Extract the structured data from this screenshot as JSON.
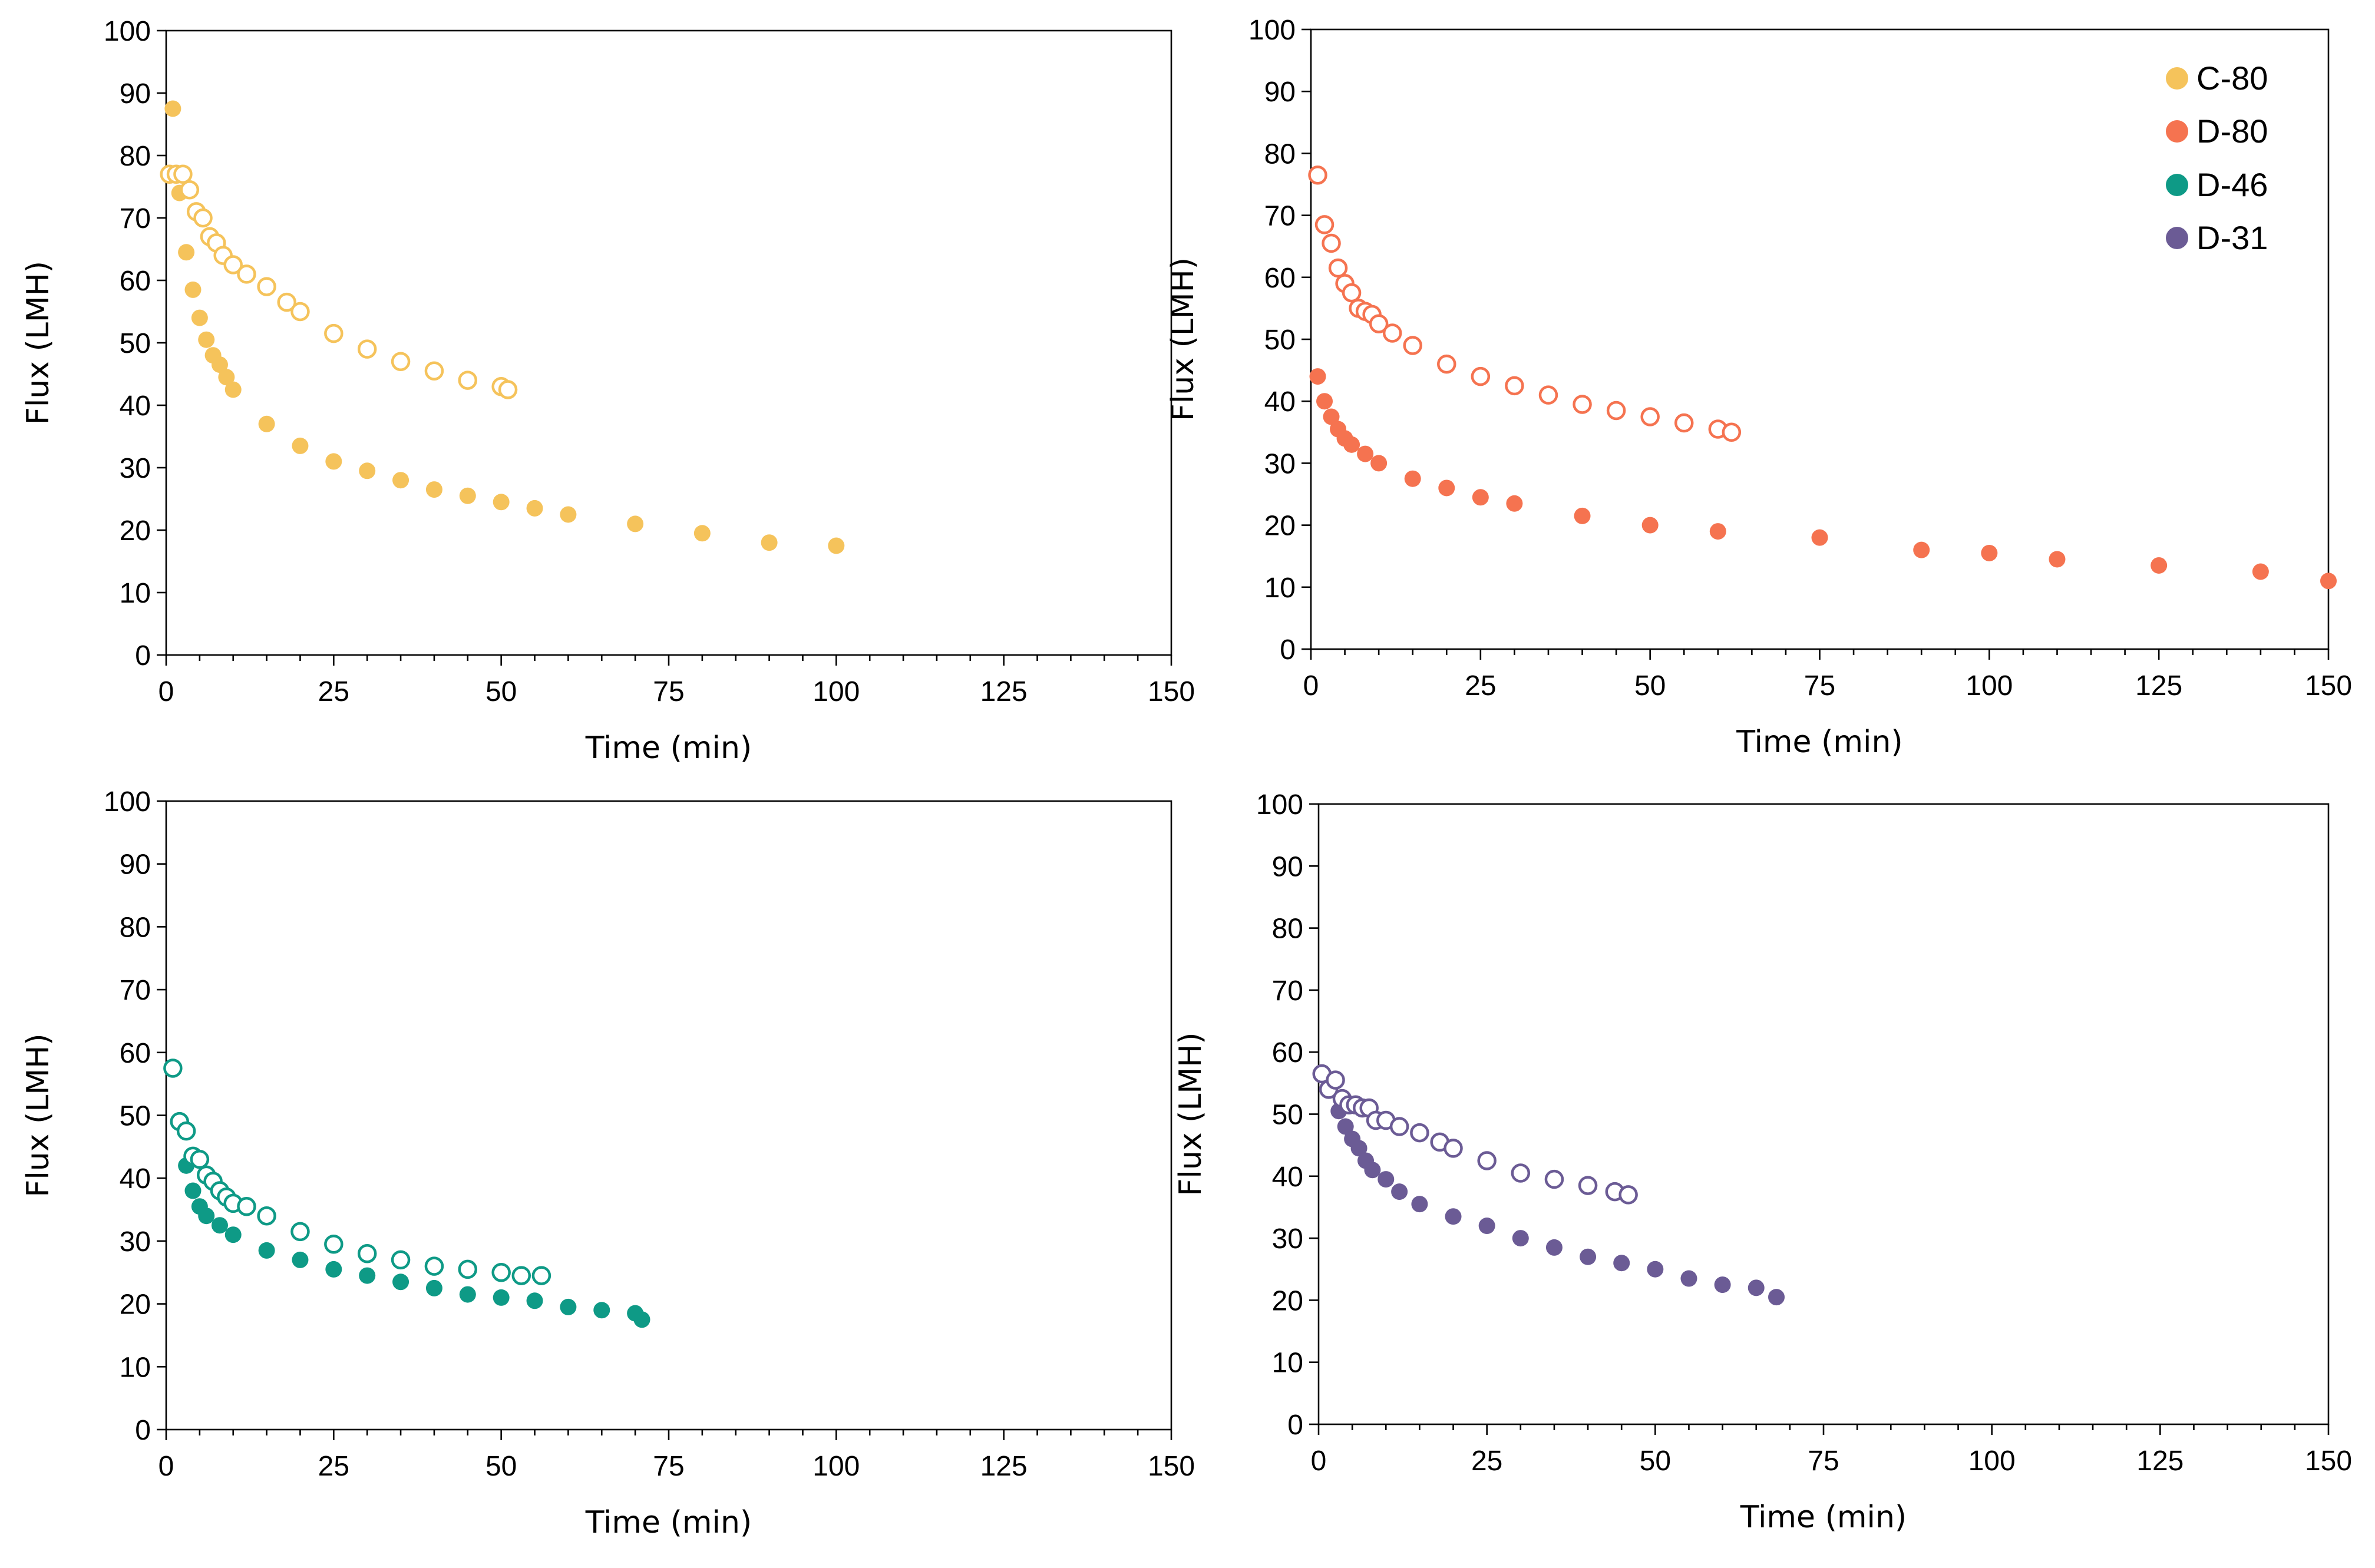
{
  "colors": {
    "C-80": "#f5c35b",
    "D-80": "#f57350",
    "D-46": "#0e9a86",
    "D-31": "#6b5b95"
  },
  "legend": {
    "entries": [
      "C-80",
      "D-80",
      "D-46",
      "D-31"
    ]
  },
  "chart_data": [
    {
      "id": "panel-c80",
      "type": "scatter",
      "title": "",
      "xlabel": "Time (min)",
      "ylabel": "Flux (LMH)",
      "xlim": [
        0,
        150
      ],
      "ylim": [
        0,
        100
      ],
      "xticks": [
        "0",
        "25",
        "50",
        "75",
        "100",
        "125",
        "150"
      ],
      "yticks": [
        "0",
        "10",
        "20",
        "30",
        "40",
        "50",
        "60",
        "70",
        "80",
        "90",
        "100"
      ],
      "series": [
        {
          "name": "C-80",
          "style": "filled",
          "x": [
            1,
            2,
            3,
            4,
            5,
            6,
            7,
            8,
            9,
            10,
            15,
            20,
            25,
            30,
            35,
            40,
            45,
            50,
            55,
            60,
            70,
            80,
            90,
            100
          ],
          "y": [
            87.5,
            74,
            64.5,
            58.5,
            54,
            50.5,
            48,
            46.5,
            44.5,
            42.5,
            37,
            33.5,
            31,
            29.5,
            28,
            26.5,
            25.5,
            24.5,
            23.5,
            22.5,
            21,
            19.5,
            18,
            17.5
          ]
        },
        {
          "name": "C-80",
          "style": "open",
          "x": [
            0.5,
            1.5,
            2.5,
            3.5,
            4.5,
            5.5,
            6.5,
            7.5,
            8.5,
            10,
            12,
            15,
            18,
            20,
            25,
            30,
            35,
            40,
            45,
            50,
            51
          ],
          "y": [
            77,
            77,
            77,
            74.5,
            71,
            70,
            67,
            66,
            64,
            62.5,
            61,
            59,
            56.5,
            55,
            51.5,
            49,
            47,
            45.5,
            44,
            43,
            42.5
          ]
        }
      ]
    },
    {
      "id": "panel-d80",
      "type": "scatter",
      "title": "",
      "xlabel": "Time (min)",
      "ylabel": "Flux (LMH)",
      "xlim": [
        0,
        150
      ],
      "ylim": [
        0,
        100
      ],
      "xticks": [
        "0",
        "25",
        "50",
        "75",
        "100",
        "125",
        "150"
      ],
      "yticks": [
        "0",
        "10",
        "20",
        "30",
        "40",
        "50",
        "60",
        "70",
        "80",
        "90",
        "100"
      ],
      "series": [
        {
          "name": "D-80",
          "style": "filled",
          "x": [
            1,
            2,
            3,
            4,
            5,
            6,
            8,
            10,
            15,
            20,
            25,
            30,
            40,
            50,
            60,
            75,
            90,
            100,
            110,
            125,
            140,
            150
          ],
          "y": [
            44,
            40,
            37.5,
            35.5,
            34,
            33,
            31.5,
            30,
            27.5,
            26,
            24.5,
            23.5,
            21.5,
            20,
            19,
            18,
            16,
            15.5,
            14.5,
            13.5,
            12.5,
            11
          ]
        },
        {
          "name": "D-80",
          "style": "open",
          "x": [
            1,
            2,
            3,
            4,
            5,
            6,
            7,
            8,
            9,
            10,
            12,
            15,
            20,
            25,
            30,
            35,
            40,
            45,
            50,
            55,
            60,
            62
          ],
          "y": [
            76.5,
            68.5,
            65.5,
            61.5,
            59,
            57.5,
            55,
            54.5,
            54,
            52.5,
            51,
            49,
            46,
            44,
            42.5,
            41,
            39.5,
            38.5,
            37.5,
            36.5,
            35.5,
            35
          ]
        }
      ]
    },
    {
      "id": "panel-d46",
      "type": "scatter",
      "title": "",
      "xlabel": "Time (min)",
      "ylabel": "Flux (LMH)",
      "xlim": [
        0,
        150
      ],
      "ylim": [
        0,
        100
      ],
      "xticks": [
        "0",
        "25",
        "50",
        "75",
        "100",
        "125",
        "150"
      ],
      "yticks": [
        "0",
        "10",
        "20",
        "30",
        "40",
        "50",
        "60",
        "70",
        "80",
        "90",
        "100"
      ],
      "series": [
        {
          "name": "D-46",
          "style": "filled",
          "x": [
            3,
            4,
            5,
            6,
            8,
            10,
            15,
            20,
            25,
            30,
            35,
            40,
            45,
            50,
            55,
            60,
            65,
            70,
            71
          ],
          "y": [
            42,
            38,
            35.5,
            34,
            32.5,
            31,
            28.5,
            27,
            25.5,
            24.5,
            23.5,
            22.5,
            21.5,
            21,
            20.5,
            19.5,
            19,
            18.5,
            17.5
          ]
        },
        {
          "name": "D-46",
          "style": "open",
          "x": [
            1,
            2,
            3,
            4,
            5,
            6,
            7,
            8,
            9,
            10,
            12,
            15,
            20,
            25,
            30,
            35,
            40,
            45,
            50,
            53,
            56
          ],
          "y": [
            57.5,
            49,
            47.5,
            43.5,
            43,
            40.5,
            39.5,
            38,
            37,
            36,
            35.5,
            34,
            31.5,
            29.5,
            28,
            27,
            26,
            25.5,
            25,
            24.5,
            24.5
          ]
        }
      ]
    },
    {
      "id": "panel-d31",
      "type": "scatter",
      "title": "",
      "xlabel": "Time (min)",
      "ylabel": "Flux (LMH)",
      "xlim": [
        0,
        150
      ],
      "ylim": [
        0,
        100
      ],
      "xticks": [
        "0",
        "25",
        "50",
        "75",
        "100",
        "125",
        "150"
      ],
      "yticks": [
        "0",
        "10",
        "20",
        "30",
        "40",
        "50",
        "60",
        "70",
        "80",
        "90",
        "100"
      ],
      "series": [
        {
          "name": "D-31",
          "style": "filled",
          "x": [
            3,
            4,
            5,
            6,
            7,
            8,
            10,
            12,
            15,
            20,
            25,
            30,
            35,
            40,
            45,
            50,
            55,
            60,
            65,
            68
          ],
          "y": [
            50.5,
            48,
            46,
            44.5,
            42.5,
            41,
            39.5,
            37.5,
            35.5,
            33.5,
            32,
            30,
            28.5,
            27,
            26,
            25,
            23.5,
            22.5,
            22,
            20.5
          ]
        },
        {
          "name": "D-31",
          "style": "open",
          "x": [
            0.5,
            1.5,
            2.5,
            3.5,
            4.5,
            5.5,
            6.5,
            7.5,
            8.5,
            10,
            12,
            15,
            18,
            20,
            25,
            30,
            35,
            40,
            44,
            46
          ],
          "y": [
            56.5,
            54,
            55.5,
            52.5,
            51.5,
            51.5,
            51,
            51,
            49,
            49,
            48,
            47,
            45.5,
            44.5,
            42.5,
            40.5,
            39.5,
            38.5,
            37.5,
            37
          ]
        }
      ]
    }
  ]
}
